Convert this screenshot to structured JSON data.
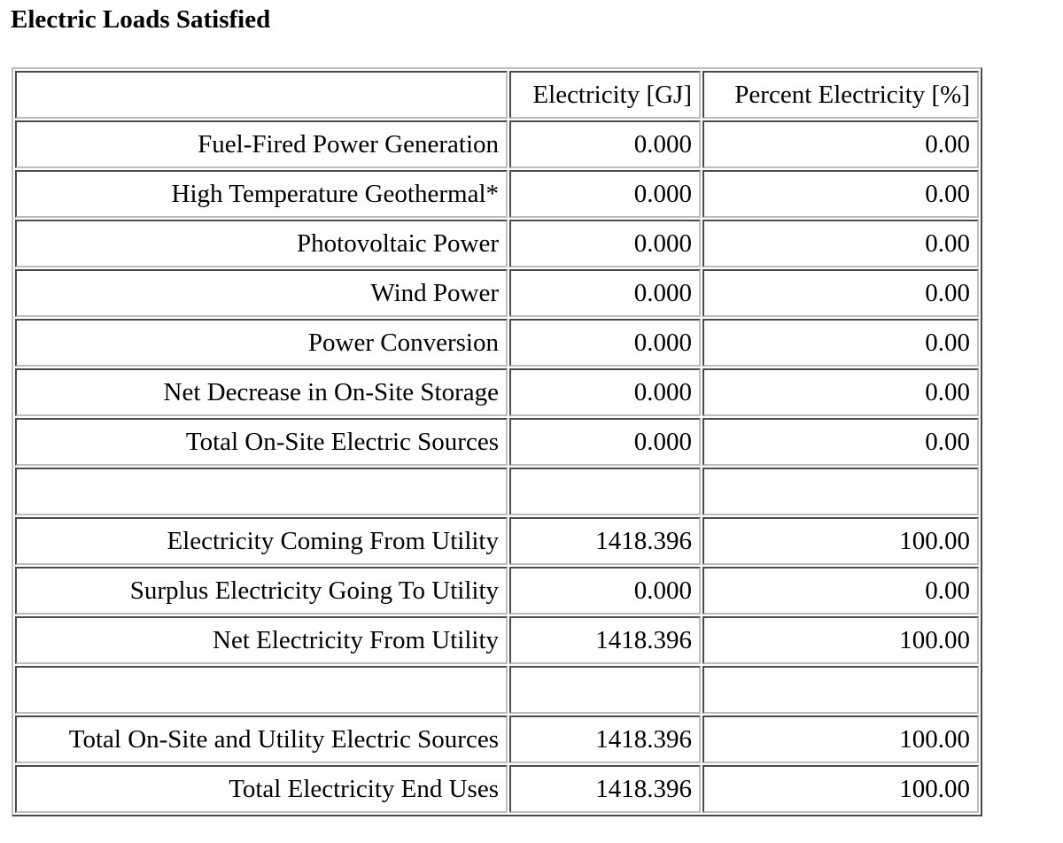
{
  "report": {
    "title": "Electric Loads Satisfied",
    "columns": [
      "",
      "Electricity [GJ]",
      "Percent Electricity [%]"
    ],
    "rows": [
      {
        "label": "Fuel-Fired Power Generation",
        "electricity": "0.000",
        "percent": "0.00"
      },
      {
        "label": "High Temperature Geothermal*",
        "electricity": "0.000",
        "percent": "0.00"
      },
      {
        "label": "Photovoltaic Power",
        "electricity": "0.000",
        "percent": "0.00"
      },
      {
        "label": "Wind Power",
        "electricity": "0.000",
        "percent": "0.00"
      },
      {
        "label": "Power Conversion",
        "electricity": "0.000",
        "percent": "0.00"
      },
      {
        "label": "Net Decrease in On-Site Storage",
        "electricity": "0.000",
        "percent": "0.00"
      },
      {
        "label": "Total On-Site Electric Sources",
        "electricity": "0.000",
        "percent": "0.00"
      },
      {
        "label": "",
        "electricity": "",
        "percent": ""
      },
      {
        "label": "Electricity Coming From Utility",
        "electricity": "1418.396",
        "percent": "100.00"
      },
      {
        "label": "Surplus Electricity Going To Utility",
        "electricity": "0.000",
        "percent": "0.00"
      },
      {
        "label": "Net Electricity From Utility",
        "electricity": "1418.396",
        "percent": "100.00"
      },
      {
        "label": "",
        "electricity": "",
        "percent": ""
      },
      {
        "label": "Total On-Site and Utility Electric Sources",
        "electricity": "1418.396",
        "percent": "100.00"
      },
      {
        "label": "Total Electricity End Uses",
        "electricity": "1418.396",
        "percent": "100.00"
      }
    ]
  }
}
